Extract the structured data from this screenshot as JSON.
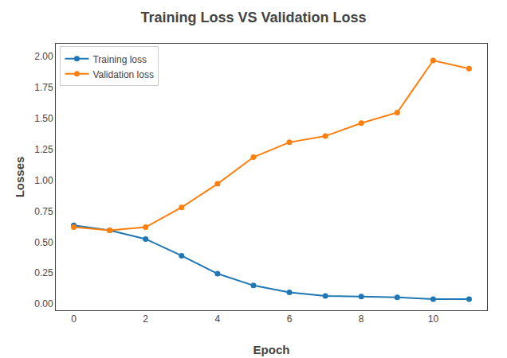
{
  "chart_data": {
    "type": "line",
    "title": "Training Loss VS Validation Loss",
    "x_label": "Epoch",
    "y_label": "Losses",
    "x": [
      0,
      1,
      2,
      3,
      4,
      5,
      6,
      7,
      8,
      9,
      10,
      11
    ],
    "series": [
      {
        "name": "Training loss",
        "color": "#1f77b4",
        "values": [
          0.635,
          0.595,
          0.525,
          0.39,
          0.245,
          0.15,
          0.095,
          0.065,
          0.06,
          0.055,
          0.04,
          0.04
        ]
      },
      {
        "name": "Validation loss",
        "color": "#ff7f0e",
        "values": [
          0.62,
          0.595,
          0.62,
          0.78,
          0.97,
          1.185,
          1.305,
          1.355,
          1.46,
          1.545,
          1.965,
          1.9
        ]
      }
    ],
    "marker": "circle",
    "xlim": [
      -0.5,
      11.5
    ],
    "ylim": [
      -0.05,
      2.1
    ],
    "xticks": [
      0,
      2,
      4,
      6,
      8,
      10
    ],
    "yticks": [
      {
        "value": 0.0,
        "label": "0.00"
      },
      0.25,
      {
        "value": 0.5,
        "label": "0.50"
      },
      0.75,
      {
        "value": 1.0,
        "label": "1.00"
      },
      1.25,
      {
        "value": 1.5,
        "label": "1.50"
      },
      1.75,
      {
        "value": 2.0,
        "label": "2.00"
      }
    ],
    "grid": false,
    "legend": "upper left"
  }
}
